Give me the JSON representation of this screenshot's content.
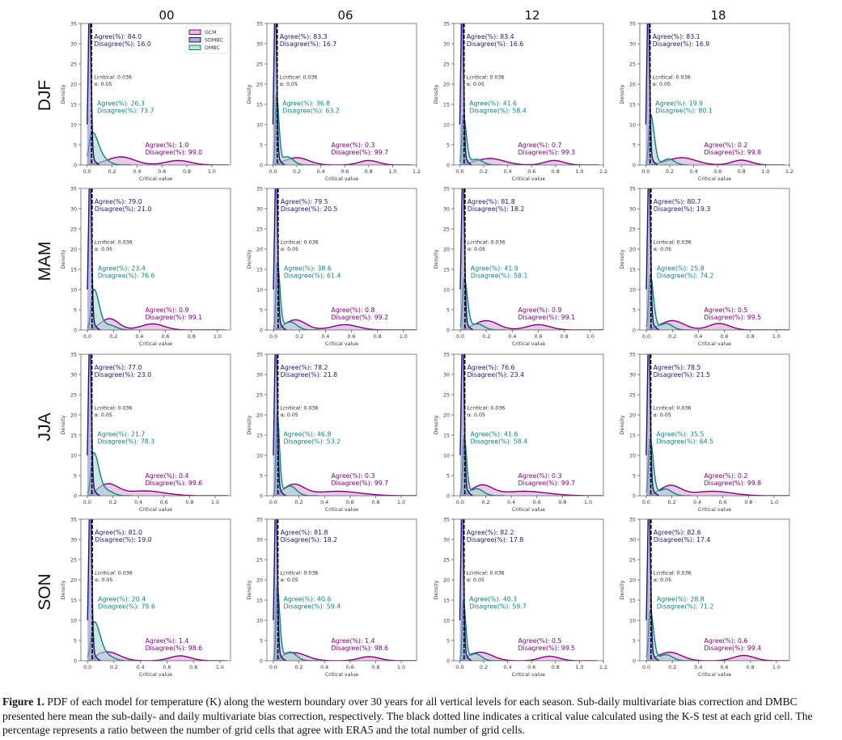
{
  "figure": {
    "caption_label": "Figure 1.",
    "caption_text": " PDF of each model for temperature (K) along the western boundary over 30 years for all vertical levels for each season. Sub-daily multivariate bias correction and DMBC presented here mean the sub-daily- and daily multivariate bias correction, respectively. The black dotted line indicates a critical value calculated using the K-S test at each grid cell. The percentage represents a ratio between the number of grid cells that agree with ERA5 and the total number of grid cells."
  },
  "colors": {
    "GCM": "#800080",
    "GCM_fill": "#d9a6d9",
    "SDMBC": "#191970",
    "SDMBC_fill": "#8c8cc4",
    "DMBC": "#138080",
    "DMBC_fill": "#a8d5d2",
    "critical_line": "#000000"
  },
  "chart_data": {
    "type": "area",
    "layout": "4x4 grid of density panels (rows = seasons, columns = hours)",
    "columns": [
      "00",
      "06",
      "12",
      "18"
    ],
    "rows": [
      "DJF",
      "MAM",
      "JJA",
      "SON"
    ],
    "xlabel": "Critical value",
    "ylabel": "Density",
    "ylim": [
      0,
      35
    ],
    "yticks": [
      0,
      5,
      10,
      15,
      20,
      25,
      30,
      35
    ],
    "legend": {
      "position": "top-right",
      "panel": "DJF-00",
      "entries": [
        "GCM",
        "SDMBC",
        "DMBC"
      ]
    },
    "critical": {
      "label_italic": "Lcritical",
      "value_text": ": 0.036",
      "alpha_text": "α: 0.05",
      "x": 0.036
    },
    "panels": [
      {
        "row": "DJF",
        "col": "00",
        "xlim": [
          -0.05,
          1.15
        ],
        "xticks": [
          0.0,
          0.2,
          0.4,
          0.6,
          0.8,
          1.0
        ],
        "sdmbc": {
          "agree": "84.0",
          "disagree": "16.0",
          "peak_x": 0.02,
          "peak_y": 40,
          "width": 0.012
        },
        "dmbc": {
          "agree": "26.3",
          "disagree": "73.7",
          "peak_x": 0.04,
          "peak_y": 8,
          "width": 0.05,
          "tail": 0.1
        },
        "gcm": {
          "agree": "1.0",
          "disagree": "99.0",
          "modes": [
            [
              0.27,
              2.0,
              0.11
            ],
            [
              0.73,
              1.1,
              0.1
            ]
          ],
          "start": 0.0,
          "end": 1.13
        }
      },
      {
        "row": "DJF",
        "col": "06",
        "xlim": [
          -0.05,
          1.2
        ],
        "xticks": [
          0.0,
          0.2,
          0.4,
          0.6,
          0.8,
          1.0,
          1.2
        ],
        "sdmbc": {
          "agree": "83.3",
          "disagree": "16.7",
          "peak_x": 0.02,
          "peak_y": 40,
          "width": 0.012
        },
        "dmbc": {
          "agree": "36.8",
          "disagree": "63.2",
          "peak_x": 0.03,
          "peak_y": 17,
          "width": 0.02,
          "tail": 0.09
        },
        "gcm": {
          "agree": "0.3",
          "disagree": "99.7",
          "modes": [
            [
              0.2,
              1.8,
              0.1
            ],
            [
              0.8,
              1.1,
              0.08
            ]
          ],
          "start": 0.0,
          "end": 1.16
        }
      },
      {
        "row": "DJF",
        "col": "12",
        "xlim": [
          -0.05,
          1.2
        ],
        "xticks": [
          0.0,
          0.2,
          0.4,
          0.6,
          0.8,
          1.0,
          1.2
        ],
        "sdmbc": {
          "agree": "83.4",
          "disagree": "16.6",
          "peak_x": 0.02,
          "peak_y": 40,
          "width": 0.012
        },
        "dmbc": {
          "agree": "41.6",
          "disagree": "58.4",
          "peak_x": 0.03,
          "peak_y": 12,
          "width": 0.025,
          "tail": 0.11
        },
        "gcm": {
          "agree": "0.7",
          "disagree": "99.3",
          "modes": [
            [
              0.25,
              1.6,
              0.12
            ],
            [
              0.79,
              1.1,
              0.08
            ]
          ],
          "start": 0.0,
          "end": 1.16
        }
      },
      {
        "row": "DJF",
        "col": "18",
        "xlim": [
          -0.05,
          1.2
        ],
        "xticks": [
          0.0,
          0.2,
          0.4,
          0.6,
          0.8,
          1.0,
          1.2
        ],
        "sdmbc": {
          "agree": "83.1",
          "disagree": "16.9",
          "peak_x": 0.02,
          "peak_y": 40,
          "width": 0.012
        },
        "dmbc": {
          "agree": "19.9",
          "disagree": "80.1",
          "peak_x": 0.04,
          "peak_y": 12.5,
          "width": 0.03,
          "tail": 0.15
        },
        "gcm": {
          "agree": "0.2",
          "disagree": "99.8",
          "modes": [
            [
              0.3,
              1.8,
              0.12
            ],
            [
              0.8,
              1.2,
              0.08
            ]
          ],
          "start": 0.0,
          "end": 1.16
        }
      },
      {
        "row": "MAM",
        "col": "00",
        "xlim": [
          -0.05,
          1.1
        ],
        "xticks": [
          0.0,
          0.2,
          0.4,
          0.6,
          0.8,
          1.0
        ],
        "sdmbc": {
          "agree": "79.0",
          "disagree": "21.0",
          "peak_x": 0.02,
          "peak_y": 40,
          "width": 0.012
        },
        "dmbc": {
          "agree": "23.4",
          "disagree": "76.6",
          "peak_x": 0.05,
          "peak_y": 10,
          "width": 0.04,
          "tail": 0.12
        },
        "gcm": {
          "agree": "0.9",
          "disagree": "99.1",
          "modes": [
            [
              0.17,
              2.8,
              0.07
            ],
            [
              0.5,
              1.5,
              0.09
            ]
          ],
          "start": 0.0,
          "end": 1.06
        }
      },
      {
        "row": "MAM",
        "col": "06",
        "xlim": [
          -0.05,
          1.1
        ],
        "xticks": [
          0.0,
          0.2,
          0.4,
          0.6,
          0.8,
          1.0
        ],
        "sdmbc": {
          "agree": "79.5",
          "disagree": "20.5",
          "peak_x": 0.02,
          "peak_y": 40,
          "width": 0.012
        },
        "dmbc": {
          "agree": "38.6",
          "disagree": "61.4",
          "peak_x": 0.03,
          "peak_y": 16.5,
          "width": 0.02,
          "tail": 0.1
        },
        "gcm": {
          "agree": "0.8",
          "disagree": "99.2",
          "modes": [
            [
              0.17,
              2.5,
              0.08
            ],
            [
              0.55,
              1.3,
              0.1
            ]
          ],
          "start": 0.0,
          "end": 1.1
        }
      },
      {
        "row": "MAM",
        "col": "12",
        "xlim": [
          -0.05,
          1.1
        ],
        "xticks": [
          0.0,
          0.2,
          0.4,
          0.6,
          0.8,
          1.0
        ],
        "sdmbc": {
          "agree": "81.8",
          "disagree": "18.2",
          "peak_x": 0.02,
          "peak_y": 40,
          "width": 0.012
        },
        "dmbc": {
          "agree": "41.9",
          "disagree": "58.1",
          "peak_x": 0.03,
          "peak_y": 12.5,
          "width": 0.025,
          "tail": 0.1
        },
        "gcm": {
          "agree": "0.9",
          "disagree": "99.1",
          "modes": [
            [
              0.2,
              2.3,
              0.09
            ],
            [
              0.6,
              1.3,
              0.09
            ]
          ],
          "start": 0.0,
          "end": 1.1
        }
      },
      {
        "row": "MAM",
        "col": "18",
        "xlim": [
          -0.05,
          1.1
        ],
        "xticks": [
          0.0,
          0.2,
          0.4,
          0.6,
          0.8,
          1.0
        ],
        "sdmbc": {
          "agree": "80.7",
          "disagree": "19.3",
          "peak_x": 0.02,
          "peak_y": 40,
          "width": 0.012
        },
        "dmbc": {
          "agree": "25.8",
          "disagree": "74.2",
          "peak_x": 0.03,
          "peak_y": 13.5,
          "width": 0.025,
          "tail": 0.12
        },
        "gcm": {
          "agree": "0.5",
          "disagree": "99.5",
          "modes": [
            [
              0.2,
              2.3,
              0.09
            ],
            [
              0.56,
              1.6,
              0.08
            ]
          ],
          "start": 0.0,
          "end": 1.1
        }
      },
      {
        "row": "JJA",
        "col": "00",
        "xlim": [
          -0.05,
          1.12
        ],
        "xticks": [
          0.0,
          0.2,
          0.4,
          0.6,
          0.8,
          1.0
        ],
        "sdmbc": {
          "agree": "77.0",
          "disagree": "23.0",
          "peak_x": 0.02,
          "peak_y": 40,
          "width": 0.012
        },
        "dmbc": {
          "agree": "21.7",
          "disagree": "78.3",
          "peak_x": 0.05,
          "peak_y": 10.5,
          "width": 0.04,
          "tail": 0.1
        },
        "gcm": {
          "agree": "0.4",
          "disagree": "99.6",
          "modes": [
            [
              0.16,
              2.8,
              0.08
            ],
            [
              0.45,
              1.2,
              0.15
            ]
          ],
          "start": 0.0,
          "end": 1.1
        }
      },
      {
        "row": "JJA",
        "col": "06",
        "xlim": [
          -0.05,
          1.12
        ],
        "xticks": [
          0.0,
          0.2,
          0.4,
          0.6,
          0.8,
          1.0
        ],
        "sdmbc": {
          "agree": "78.2",
          "disagree": "21.8",
          "peak_x": 0.02,
          "peak_y": 40,
          "width": 0.012
        },
        "dmbc": {
          "agree": "46.8",
          "disagree": "53.2",
          "peak_x": 0.03,
          "peak_y": 20,
          "width": 0.018,
          "tail": 0.1
        },
        "gcm": {
          "agree": "0.3",
          "disagree": "99.7",
          "modes": [
            [
              0.16,
              2.7,
              0.08
            ],
            [
              0.5,
              1.1,
              0.18
            ]
          ],
          "start": 0.0,
          "end": 1.12
        }
      },
      {
        "row": "JJA",
        "col": "12",
        "xlim": [
          -0.05,
          1.12
        ],
        "xticks": [
          0.0,
          0.2,
          0.4,
          0.6,
          0.8,
          1.0
        ],
        "sdmbc": {
          "agree": "76.6",
          "disagree": "23.4",
          "peak_x": 0.02,
          "peak_y": 40,
          "width": 0.012
        },
        "dmbc": {
          "agree": "41.6",
          "disagree": "58.4",
          "peak_x": 0.03,
          "peak_y": 14.5,
          "width": 0.02,
          "tail": 0.1
        },
        "gcm": {
          "agree": "0.3",
          "disagree": "99.7",
          "modes": [
            [
              0.17,
              2.5,
              0.08
            ],
            [
              0.5,
              1.1,
              0.18
            ]
          ],
          "start": 0.0,
          "end": 1.12
        }
      },
      {
        "row": "JJA",
        "col": "18",
        "xlim": [
          -0.05,
          1.12
        ],
        "xticks": [
          0.0,
          0.2,
          0.4,
          0.6,
          0.8,
          1.0
        ],
        "sdmbc": {
          "agree": "78.5",
          "disagree": "21.5",
          "peak_x": 0.02,
          "peak_y": 40,
          "width": 0.012
        },
        "dmbc": {
          "agree": "35.5",
          "disagree": "64.5",
          "peak_x": 0.03,
          "peak_y": 14,
          "width": 0.025,
          "tail": 0.12
        },
        "gcm": {
          "agree": "0.2",
          "disagree": "99.8",
          "modes": [
            [
              0.19,
              2.5,
              0.08
            ],
            [
              0.52,
              1.1,
              0.15
            ]
          ],
          "start": 0.0,
          "end": 1.12
        }
      },
      {
        "row": "SON",
        "col": "00",
        "xlim": [
          -0.05,
          1.08
        ],
        "xticks": [
          0.0,
          0.2,
          0.4,
          0.6,
          0.8,
          1.0
        ],
        "sdmbc": {
          "agree": "81.0",
          "disagree": "19.0",
          "peak_x": 0.02,
          "peak_y": 40,
          "width": 0.012
        },
        "dmbc": {
          "agree": "20.4",
          "disagree": "79.6",
          "peak_x": 0.05,
          "peak_y": 9.5,
          "width": 0.045,
          "tail": 0.1
        },
        "gcm": {
          "agree": "1.4",
          "disagree": "98.6",
          "modes": [
            [
              0.15,
              2.2,
              0.09
            ],
            [
              0.7,
              1.2,
              0.08
            ]
          ],
          "start": 0.0,
          "end": 1.05
        }
      },
      {
        "row": "SON",
        "col": "06",
        "xlim": [
          -0.05,
          1.12
        ],
        "xticks": [
          0.0,
          0.2,
          0.4,
          0.6,
          0.8,
          1.0
        ],
        "sdmbc": {
          "agree": "81.8",
          "disagree": "18.2",
          "peak_x": 0.02,
          "peak_y": 40,
          "width": 0.012
        },
        "dmbc": {
          "agree": "40.6",
          "disagree": "59.4",
          "peak_x": 0.03,
          "peak_y": 18,
          "width": 0.02,
          "tail": 0.1
        },
        "gcm": {
          "agree": "1.4",
          "disagree": "98.6",
          "modes": [
            [
              0.16,
              2.0,
              0.1
            ],
            [
              0.75,
              1.0,
              0.08
            ]
          ],
          "start": 0.0,
          "end": 1.12
        }
      },
      {
        "row": "SON",
        "col": "12",
        "xlim": [
          -0.05,
          1.2
        ],
        "xticks": [
          0.0,
          0.2,
          0.4,
          0.6,
          0.8,
          1.0,
          1.2
        ],
        "sdmbc": {
          "agree": "82.2",
          "disagree": "17.8",
          "peak_x": 0.02,
          "peak_y": 40,
          "width": 0.012
        },
        "dmbc": {
          "agree": "40.3",
          "disagree": "59.7",
          "peak_x": 0.03,
          "peak_y": 14.5,
          "width": 0.02,
          "tail": 0.1
        },
        "gcm": {
          "agree": "0.5",
          "disagree": "99.5",
          "modes": [
            [
              0.17,
              2.1,
              0.1
            ],
            [
              0.75,
              1.1,
              0.08
            ]
          ],
          "start": 0.0,
          "end": 1.15
        }
      },
      {
        "row": "SON",
        "col": "18",
        "xlim": [
          -0.05,
          1.1
        ],
        "xticks": [
          0.0,
          0.2,
          0.4,
          0.6,
          0.8,
          1.0
        ],
        "sdmbc": {
          "agree": "82.6",
          "disagree": "17.4",
          "peak_x": 0.02,
          "peak_y": 40,
          "width": 0.012
        },
        "dmbc": {
          "agree": "28.8",
          "disagree": "71.2",
          "peak_x": 0.03,
          "peak_y": 12.5,
          "width": 0.025,
          "tail": 0.12
        },
        "gcm": {
          "agree": "0.6",
          "disagree": "99.4",
          "modes": [
            [
              0.18,
              2.1,
              0.09
            ],
            [
              0.75,
              1.3,
              0.08
            ]
          ],
          "start": 0.0,
          "end": 1.1
        }
      }
    ]
  }
}
